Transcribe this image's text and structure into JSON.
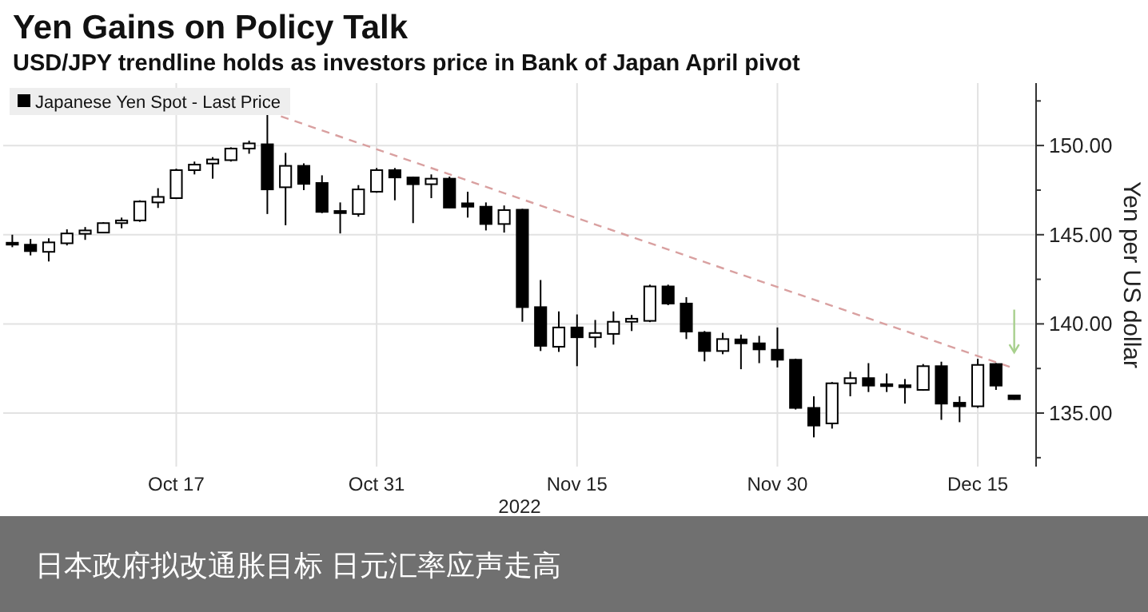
{
  "chart_data": {
    "type": "candlestick",
    "title": "Yen Gains on Policy Talk",
    "subtitle": "USD/JPY trendline holds as investors price in Bank of Japan April pivot",
    "xlabel": "2022",
    "ylabel": "Yen per US dollar",
    "categories": [
      null,
      null,
      null,
      null,
      null,
      null,
      null,
      null,
      null,
      "Oct 17",
      null,
      null,
      null,
      null,
      null,
      null,
      null,
      null,
      null,
      null,
      "Oct 31",
      null,
      null,
      null,
      null,
      null,
      null,
      null,
      null,
      null,
      null,
      "Nov 15",
      null,
      null,
      null,
      null,
      null,
      null,
      null,
      null,
      null,
      null,
      "Nov 30",
      null,
      null,
      null,
      null,
      null,
      null,
      null,
      null,
      null,
      null,
      "Dec 15",
      null,
      null
    ],
    "series": [
      {
        "name": "Japanese Yen Spot - Last Price",
        "color": "#000000",
        "ohlc": [
          [
            144.55,
            145.0,
            144.3,
            144.5
          ],
          [
            144.44,
            144.76,
            143.84,
            144.08
          ],
          [
            144.04,
            144.8,
            143.5,
            144.57
          ],
          [
            144.52,
            145.3,
            144.4,
            145.07
          ],
          [
            145.05,
            145.43,
            144.71,
            145.24
          ],
          [
            145.12,
            145.7,
            145.1,
            145.65
          ],
          [
            145.65,
            145.96,
            145.36,
            145.8
          ],
          [
            145.8,
            146.93,
            145.72,
            146.86
          ],
          [
            146.81,
            147.61,
            146.5,
            147.12
          ],
          [
            147.05,
            148.7,
            147.0,
            148.62
          ],
          [
            148.62,
            149.1,
            148.38,
            148.93
          ],
          [
            148.99,
            149.35,
            148.14,
            149.22
          ],
          [
            149.18,
            149.9,
            149.1,
            149.83
          ],
          [
            149.83,
            150.27,
            149.54,
            150.12
          ],
          [
            150.07,
            151.88,
            146.16,
            147.54
          ],
          [
            147.66,
            149.59,
            145.53,
            148.86
          ],
          [
            148.86,
            149.0,
            147.5,
            147.85
          ],
          [
            147.9,
            148.33,
            146.21,
            146.28
          ],
          [
            146.33,
            146.81,
            145.07,
            146.21
          ],
          [
            146.16,
            147.78,
            146.01,
            147.54
          ],
          [
            147.41,
            148.74,
            147.35,
            148.62
          ],
          [
            148.62,
            148.74,
            146.93,
            148.21
          ],
          [
            148.21,
            148.26,
            145.65,
            147.83
          ],
          [
            147.83,
            148.38,
            147.05,
            148.14
          ],
          [
            148.14,
            148.26,
            146.5,
            146.52
          ],
          [
            146.76,
            147.41,
            145.96,
            146.57
          ],
          [
            146.57,
            146.81,
            145.24,
            145.6
          ],
          [
            145.6,
            146.64,
            145.12,
            146.38
          ],
          [
            146.4,
            146.45,
            140.12,
            140.94
          ],
          [
            140.94,
            142.46,
            138.48,
            138.77
          ],
          [
            138.72,
            140.7,
            138.43,
            139.8
          ],
          [
            139.8,
            140.53,
            137.63,
            139.25
          ],
          [
            139.25,
            140.22,
            138.67,
            139.49
          ],
          [
            139.44,
            140.7,
            138.84,
            140.12
          ],
          [
            140.12,
            140.5,
            139.6,
            140.29
          ],
          [
            140.17,
            142.2,
            140.1,
            142.1
          ],
          [
            142.1,
            142.2,
            141.05,
            141.14
          ],
          [
            141.14,
            141.5,
            139.15,
            139.57
          ],
          [
            139.51,
            139.6,
            137.9,
            138.48
          ],
          [
            138.48,
            139.5,
            138.3,
            139.15
          ],
          [
            139.13,
            139.4,
            137.46,
            138.91
          ],
          [
            138.91,
            139.33,
            137.8,
            138.57
          ],
          [
            138.55,
            139.8,
            137.56,
            137.99
          ],
          [
            137.99,
            138.05,
            135.2,
            135.29
          ],
          [
            135.29,
            135.94,
            133.64,
            134.3
          ],
          [
            134.42,
            136.74,
            134.13,
            136.67
          ],
          [
            136.67,
            137.32,
            135.94,
            136.96
          ],
          [
            136.96,
            137.8,
            136.18,
            136.54
          ],
          [
            136.62,
            137.22,
            136.18,
            136.57
          ],
          [
            136.56,
            136.91,
            135.53,
            136.52
          ],
          [
            136.3,
            137.75,
            136.25,
            137.63
          ],
          [
            137.63,
            137.88,
            134.62,
            135.53
          ],
          [
            135.58,
            135.94,
            134.49,
            135.38
          ],
          [
            135.38,
            138.04,
            135.29,
            137.7
          ],
          [
            137.75,
            137.8,
            136.3,
            136.54
          ],
          [
            135.99,
            136.0,
            135.75,
            135.78
          ]
        ]
      },
      {
        "type": "line",
        "color": "#d9a0a0",
        "line_style": "dashed",
        "values": [
          null,
          null,
          null,
          null,
          null,
          null,
          null,
          null,
          null,
          null,
          null,
          null,
          null,
          null,
          151.9,
          null,
          null,
          null,
          null,
          null,
          null,
          null,
          null,
          null,
          null,
          null,
          null,
          null,
          null,
          null,
          null,
          null,
          null,
          null,
          null,
          null,
          null,
          null,
          null,
          null,
          null,
          null,
          null,
          null,
          null,
          null,
          null,
          null,
          null,
          null,
          null,
          null,
          null,
          null,
          null,
          137.5
        ]
      }
    ],
    "ylim": [
      132,
      153.5
    ],
    "yticks": [
      {
        "value": 132.5,
        "label": null
      },
      {
        "value": 135,
        "label": "135.00"
      },
      {
        "value": 137.5,
        "label": null
      },
      {
        "value": 140,
        "label": "140.00"
      },
      {
        "value": 142.5,
        "label": null
      },
      {
        "value": 145,
        "label": "145.00"
      },
      {
        "value": 147.5,
        "label": null
      },
      {
        "value": 150,
        "label": "150.00"
      },
      {
        "value": 152.5,
        "label": null
      }
    ],
    "grid": true,
    "legend": "top left",
    "annotations": [
      "日本政府拟改通胀目标 日元汇率应声走高"
    ]
  }
}
